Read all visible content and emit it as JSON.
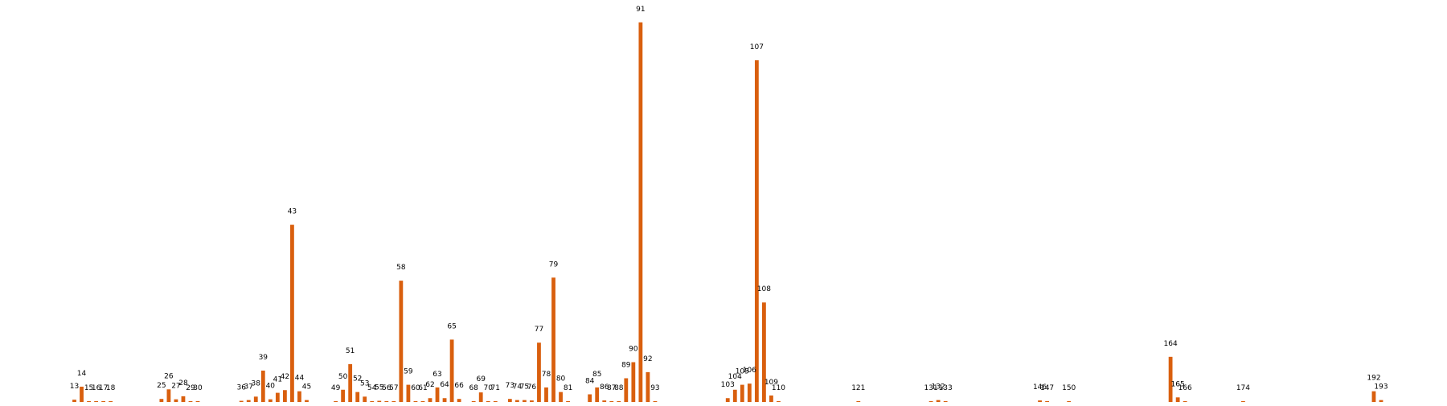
{
  "chart_data": {
    "type": "bar",
    "title": "",
    "xlabel": "",
    "ylabel": "",
    "axes_visible": false,
    "grid": false,
    "legend": "none",
    "bar_color": "#d95f0e",
    "ylim": [
      0,
      1000
    ],
    "categories": [
      "13",
      "14",
      "15",
      "16",
      "17",
      "18",
      "25",
      "26",
      "27",
      "28",
      "29",
      "30",
      "36",
      "37",
      "38",
      "39",
      "40",
      "41",
      "42",
      "43",
      "44",
      "45",
      "49",
      "50",
      "51",
      "52",
      "53",
      "54",
      "55",
      "56",
      "57",
      "58",
      "59",
      "60",
      "61",
      "62",
      "63",
      "64",
      "65",
      "66",
      "68",
      "69",
      "70",
      "71",
      "73",
      "74",
      "75",
      "76",
      "77",
      "78",
      "79",
      "80",
      "81",
      "84",
      "85",
      "86",
      "87",
      "88",
      "89",
      "90",
      "91",
      "92",
      "93",
      "103",
      "104",
      "105",
      "106",
      "107",
      "108",
      "109",
      "110",
      "121",
      "131",
      "132",
      "133",
      "146",
      "147",
      "150",
      "164",
      "165",
      "166",
      "174",
      "192",
      "193"
    ],
    "values": [
      6,
      40,
      1,
      1,
      1,
      1,
      8,
      33,
      7,
      15,
      1,
      1,
      3,
      5,
      14,
      82,
      7,
      24,
      31,
      463,
      28,
      5,
      2,
      32,
      99,
      26,
      14,
      2,
      3,
      1,
      2,
      317,
      45,
      2,
      2,
      10,
      38,
      10,
      163,
      8,
      1,
      25,
      1,
      1,
      8,
      5,
      5,
      4,
      155,
      38,
      325,
      26,
      1,
      20,
      38,
      4,
      2,
      1,
      62,
      104,
      992,
      78,
      1,
      10,
      32,
      45,
      48,
      893,
      260,
      17,
      1,
      1,
      1,
      5,
      1,
      4,
      1,
      1,
      118,
      12,
      1,
      2,
      28,
      5
    ]
  }
}
